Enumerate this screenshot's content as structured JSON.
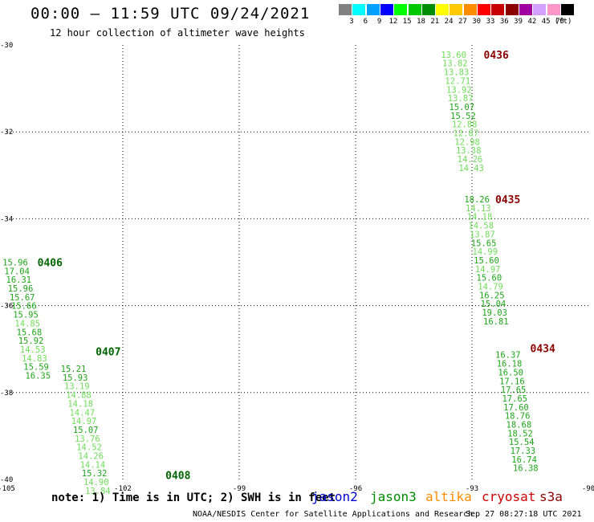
{
  "header": {
    "title": "00:00 – 11:59 UTC 09/24/2021",
    "subtitle": "12 hour collection of altimeter wave heights"
  },
  "color_scale": {
    "unit": "(ft)",
    "items": [
      {
        "label": "3",
        "color": "#808080"
      },
      {
        "label": "6",
        "color": "#00ffff"
      },
      {
        "label": "9",
        "color": "#00a0ff"
      },
      {
        "label": "12",
        "color": "#0000ff"
      },
      {
        "label": "15",
        "color": "#00ff00"
      },
      {
        "label": "18",
        "color": "#00c800"
      },
      {
        "label": "21",
        "color": "#008c00"
      },
      {
        "label": "24",
        "color": "#ffff00"
      },
      {
        "label": "27",
        "color": "#ffc800"
      },
      {
        "label": "30",
        "color": "#ff8c00"
      },
      {
        "label": "33",
        "color": "#ff0000"
      },
      {
        "label": "36",
        "color": "#c80000"
      },
      {
        "label": "39",
        "color": "#8c0000"
      },
      {
        "label": "42",
        "color": "#a000a0"
      },
      {
        "label": "45",
        "color": "#d2a0ff"
      },
      {
        "label": "70",
        "color": "#ff96c8"
      },
      {
        "label": "",
        "color": "#000000"
      }
    ]
  },
  "map": {
    "lon_range": [
      -105,
      -90
    ],
    "lat_range": [
      -40,
      -30
    ],
    "lon_ticks": [
      "-105",
      "-102",
      "-99",
      "-96",
      "-93",
      "-90"
    ],
    "lat_ticks": [
      "-30",
      "-32",
      "-34",
      "-36",
      "-38",
      "-40"
    ]
  },
  "tracks": [
    {
      "pass_label": "0436",
      "label_color": "#8b0000",
      "label_pos": [
        -92.7,
        -30.22
      ],
      "start": [
        -93.8,
        -30.22
      ],
      "step": [
        0.035,
        0.2005
      ],
      "values": [
        "13.60",
        "13.82",
        "13.83",
        "12.71",
        "13.92",
        "13.87",
        "15.07",
        "15.52",
        "12.88",
        "12.87",
        "12.98",
        "13.38",
        "14.26",
        "14.43"
      ],
      "colors": [
        "l",
        "l",
        "l",
        "l",
        "l",
        "l",
        "d",
        "d",
        "l",
        "l",
        "l",
        "l",
        "l",
        "l"
      ]
    },
    {
      "pass_label": "0435",
      "label_color": "#8b0000",
      "label_pos": [
        -92.4,
        -33.55
      ],
      "start": [
        -93.2,
        -33.55
      ],
      "step": [
        0.035,
        0.2005
      ],
      "values": [
        "18.26",
        "14.13",
        "14.18",
        "14.58",
        "13.87",
        "15.65",
        "14.99",
        "15.60",
        "14.97",
        "15.60",
        "14.79",
        "16.25",
        "15.04",
        "19.03",
        "16.81"
      ],
      "colors": [
        "d",
        "l",
        "l",
        "l",
        "l",
        "d",
        "l",
        "d",
        "l",
        "d",
        "l",
        "d",
        "d",
        "d",
        "d"
      ]
    },
    {
      "pass_label": "0434",
      "label_color": "#8b0000",
      "label_pos": [
        -91.5,
        -36.98
      ],
      "start": [
        -92.4,
        -37.13
      ],
      "step": [
        0.035,
        0.2005
      ],
      "values": [
        "16.37",
        "16.18",
        "16.50",
        "17.16",
        "17.65",
        "17.65",
        "17.60",
        "18.76",
        "18.68",
        "18.52",
        "15.54",
        "17.33",
        "16.74",
        "16.38"
      ],
      "colors": [
        "d",
        "d",
        "d",
        "d",
        "d",
        "d",
        "d",
        "d",
        "d",
        "d",
        "d",
        "d",
        "d",
        "d"
      ]
    },
    {
      "pass_label": "0406",
      "label_color": "#006400",
      "label_pos": [
        -104.2,
        -35.0
      ],
      "start": [
        -105.1,
        -35.0
      ],
      "step": [
        0.045,
        0.2005
      ],
      "values": [
        "15.96",
        "17.04",
        "16.31",
        "15.96",
        "15.67",
        "15.66",
        "15.95",
        "14.85",
        "15.68",
        "15.92",
        "14.53",
        "14.83",
        "15.59",
        "16.35"
      ],
      "colors": [
        "d",
        "d",
        "d",
        "d",
        "d",
        "d",
        "d",
        "l",
        "d",
        "d",
        "l",
        "l",
        "d",
        "d"
      ]
    },
    {
      "pass_label": "0407",
      "label_color": "#006400",
      "label_pos": [
        -102.7,
        -37.05
      ],
      "start": [
        -103.6,
        -37.45
      ],
      "step": [
        0.045,
        0.2005
      ],
      "values": [
        "15.21",
        "15.93",
        "13.19",
        "14.88",
        "14.18",
        "14.47",
        "14.97",
        "15.07",
        "13.76",
        "14.52",
        "14.26",
        "14.14",
        "15.32",
        "14.90",
        "13.84"
      ],
      "colors": [
        "d",
        "d",
        "l",
        "l",
        "l",
        "l",
        "l",
        "d",
        "l",
        "l",
        "l",
        "l",
        "d",
        "l",
        "l"
      ]
    },
    {
      "pass_label": "0408",
      "label_color": "#006400",
      "label_pos": [
        -100.9,
        -39.9
      ],
      "start": null,
      "step": null,
      "values": [],
      "colors": []
    }
  ],
  "notes": {
    "note": "note:  1) Time is in UTC; 2) SWH is in feet",
    "satellites": [
      {
        "name": "jason2",
        "color": "#0000cc"
      },
      {
        "name": "jason3",
        "color": "#008c00"
      },
      {
        "name": "altika",
        "color": "#ff8c00"
      },
      {
        "name": "cryosat",
        "color": "#cc0000"
      },
      {
        "name": "s3a",
        "color": "#8b0000"
      }
    ],
    "footer_left": "NOAA/NESDIS Center for Satellite Applications and Research",
    "footer_right": "Sep 27 08:27:18 UTC 2021"
  }
}
